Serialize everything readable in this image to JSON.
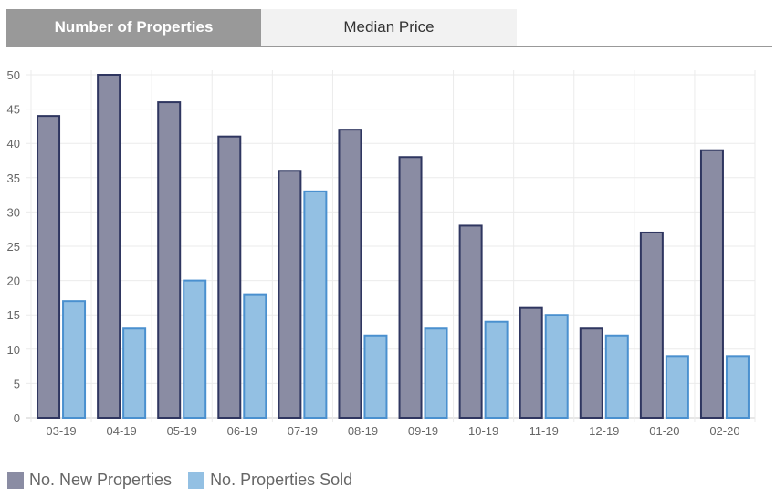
{
  "tabs": [
    {
      "label": "Number of Properties",
      "active": true
    },
    {
      "label": "Median Price",
      "active": false
    }
  ],
  "chart_data": {
    "type": "bar",
    "categories": [
      "03-19",
      "04-19",
      "05-19",
      "06-19",
      "07-19",
      "08-19",
      "09-19",
      "10-19",
      "11-19",
      "12-19",
      "01-20",
      "02-20"
    ],
    "series": [
      {
        "name": "No. New Properties",
        "values": [
          44,
          50,
          46,
          41,
          36,
          42,
          38,
          28,
          16,
          13,
          27,
          39
        ],
        "color": "#8a8ca3",
        "border": "#2f3660"
      },
      {
        "name": "No. Properties Sold",
        "values": [
          17,
          13,
          20,
          18,
          33,
          12,
          13,
          14,
          15,
          12,
          9,
          9
        ],
        "color": "#93c0e3",
        "border": "#4a90cf"
      }
    ],
    "ylim": [
      0,
      50
    ],
    "yticks": [
      0,
      5,
      10,
      15,
      20,
      25,
      30,
      35,
      40,
      45,
      50
    ],
    "grid": true,
    "legend": "bottom-left",
    "title": "",
    "xlabel": "",
    "ylabel": ""
  }
}
